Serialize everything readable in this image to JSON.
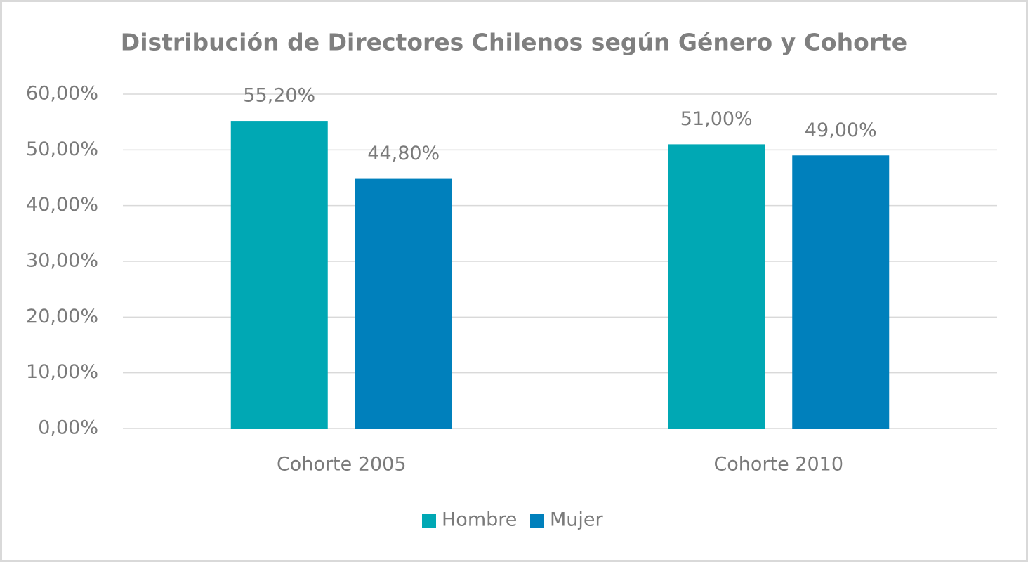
{
  "chart_data": {
    "type": "bar",
    "title": "Distribución de Directores Chilenos según Género y Cohorte",
    "categories": [
      "Cohorte 2005",
      "Cohorte 2010"
    ],
    "series": [
      {
        "name": "Hombre",
        "color": "#00a8b4",
        "values": [
          55.2,
          51
        ],
        "value_labels": [
          "55,20%",
          "51,00%"
        ]
      },
      {
        "name": "Mujer",
        "color": "#0080bc",
        "values": [
          44.8,
          49
        ],
        "value_labels": [
          "44,80%",
          "49,00%"
        ]
      }
    ],
    "ylim": [
      0,
      60
    ],
    "yticks": [
      {
        "value": 0,
        "label": "0,00%"
      },
      {
        "value": 10,
        "label": "10,00%"
      },
      {
        "value": 20,
        "label": "20,00%"
      },
      {
        "value": 30,
        "label": "30,00%"
      },
      {
        "value": 40,
        "label": "40,00%"
      },
      {
        "value": 50,
        "label": "50,00%"
      },
      {
        "value": 60,
        "label": "60,00%"
      }
    ],
    "grid": true,
    "legend": "bottom"
  }
}
